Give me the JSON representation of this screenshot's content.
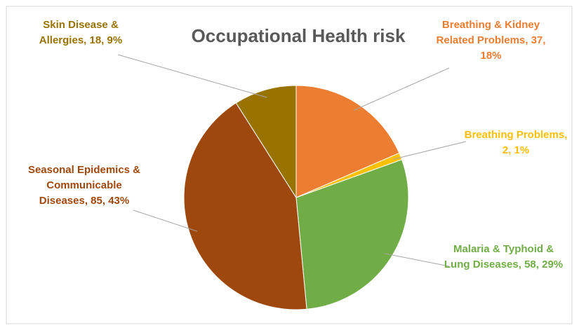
{
  "chart_data": {
    "type": "pie",
    "title": "Occupational Health risk",
    "categories": [
      "Breathing & Kidney Related Problems",
      "Breathing Problems",
      "Malaria & Typhoid & Lung Diseases",
      "Seasonal Epidemics & Communicable Diseases",
      "Skin Disease & Allergies"
    ],
    "values": [
      37,
      2,
      58,
      85,
      18
    ],
    "value_labels": [
      "Breathing & Kidney Related Problems, 37, 18%",
      "Breathing Problems, 2, 1%",
      "Malaria & Typhoid & Lung Diseases, 58, 29%",
      "Seasonal Epidemics & Communicable Diseases, 85, 43%",
      "Skin Disease & Allergies, 18, 9%"
    ],
    "colors": [
      "#ed7d31",
      "#ffc000",
      "#70ad47",
      "#9e480e",
      "#997300"
    ]
  }
}
